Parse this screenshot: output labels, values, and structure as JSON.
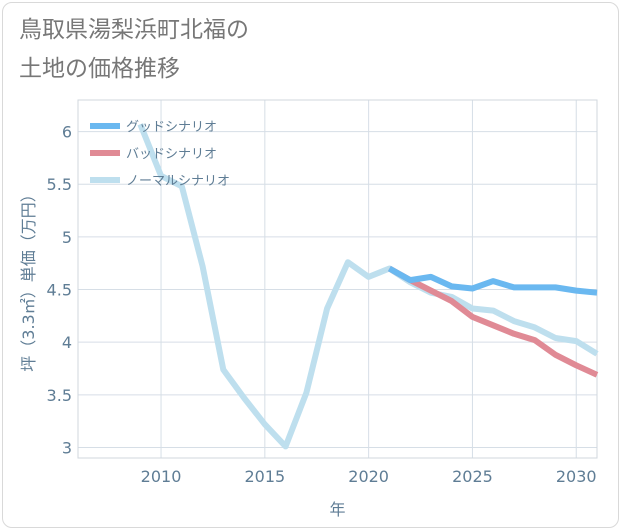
{
  "title_line1": "鳥取県湯梨浜町北福の",
  "title_line2": "土地の価格推移",
  "chart_data": {
    "type": "line",
    "xlabel": "年",
    "ylabel": "坪（3.3㎡）単価（万円）",
    "xlim": [
      2006,
      2031
    ],
    "ylim": [
      2.9,
      6.3
    ],
    "xticks": [
      2010,
      2015,
      2020,
      2025,
      2030
    ],
    "yticks": [
      3,
      3.5,
      4,
      4.5,
      5,
      5.5,
      6
    ],
    "grid": true,
    "legend_position": "top-left",
    "series": [
      {
        "name": "グッドシナリオ",
        "color": "#6ab8f0",
        "x": [
          2021,
          2022,
          2023,
          2024,
          2025,
          2026,
          2027,
          2028,
          2029,
          2030,
          2031
        ],
        "y": [
          4.7,
          4.59,
          4.62,
          4.53,
          4.51,
          4.58,
          4.52,
          4.52,
          4.52,
          4.49,
          4.47
        ]
      },
      {
        "name": "バッドシナリオ",
        "color": "#e08a95",
        "x": [
          2021,
          2022,
          2023,
          2024,
          2025,
          2026,
          2027,
          2028,
          2029,
          2030,
          2031
        ],
        "y": [
          4.7,
          4.59,
          4.49,
          4.39,
          4.24,
          4.16,
          4.08,
          4.02,
          3.88,
          3.78,
          3.69
        ]
      },
      {
        "name": "ノーマルシナリオ",
        "color": "#bedfee",
        "x": [
          2009,
          2010,
          2011,
          2012,
          2013,
          2014,
          2015,
          2016,
          2017,
          2018,
          2019,
          2020,
          2021,
          2022,
          2023,
          2024,
          2025,
          2026,
          2027,
          2028,
          2029,
          2030,
          2031
        ],
        "y": [
          6.07,
          5.58,
          5.48,
          4.72,
          3.74,
          3.47,
          3.22,
          3.01,
          3.52,
          4.32,
          4.76,
          4.62,
          4.7,
          4.57,
          4.47,
          4.43,
          4.32,
          4.3,
          4.2,
          4.14,
          4.04,
          4.01,
          3.89
        ]
      }
    ]
  }
}
